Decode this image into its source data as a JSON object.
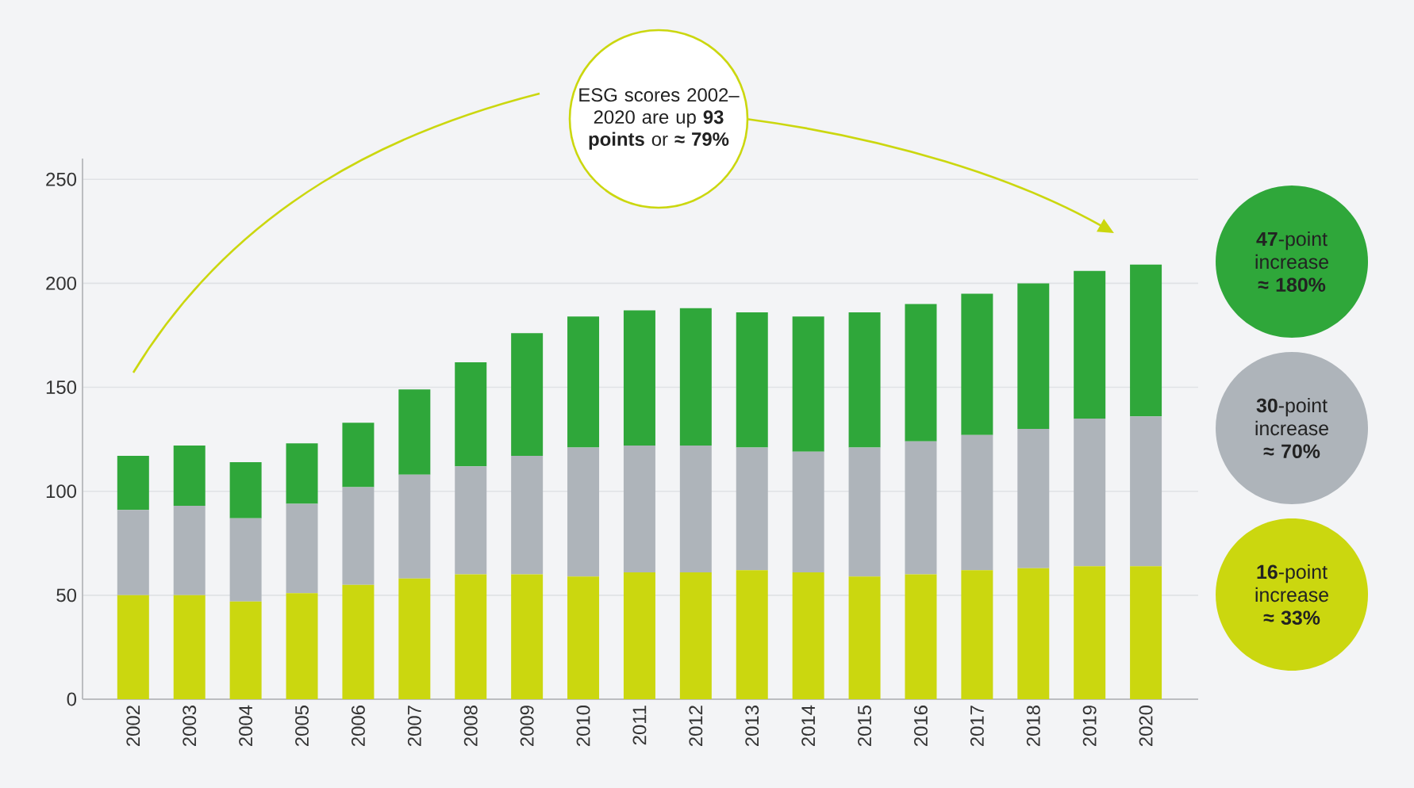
{
  "chart_data": {
    "type": "bar",
    "stacked": true,
    "grid": "y",
    "categories": [
      "2002",
      "2003",
      "2004",
      "2005",
      "2006",
      "2007",
      "2008",
      "2009",
      "2010",
      "2011",
      "2012",
      "2013",
      "2014",
      "2015",
      "2016",
      "2017",
      "2018",
      "2019",
      "2020"
    ],
    "series": [
      {
        "color": "#cbd70f",
        "values": [
          50,
          50,
          47,
          51,
          55,
          58,
          60,
          60,
          59,
          61,
          61,
          62,
          61,
          59,
          60,
          62,
          63,
          64,
          64
        ]
      },
      {
        "color": "#aeb4ba",
        "values": [
          41,
          43,
          40,
          43,
          47,
          50,
          52,
          57,
          62,
          61,
          61,
          59,
          58,
          62,
          64,
          65,
          67,
          71,
          72
        ]
      },
      {
        "color": "#2fa73a",
        "values": [
          26,
          29,
          27,
          29,
          31,
          41,
          50,
          59,
          63,
          65,
          66,
          65,
          65,
          65,
          66,
          68,
          70,
          71,
          73
        ]
      }
    ],
    "ylim": [
      0,
      260
    ],
    "yticks": [
      0,
      50,
      100,
      150,
      200,
      250
    ],
    "annotations": [
      "ESG scores 2002–2020 are up **93 points** or **≈ 79%**",
      "**47**-point increase **≈ 180%**",
      "**30**-point increase **≈ 70%**",
      "**16**-point increase **≈ 33%**"
    ]
  }
}
